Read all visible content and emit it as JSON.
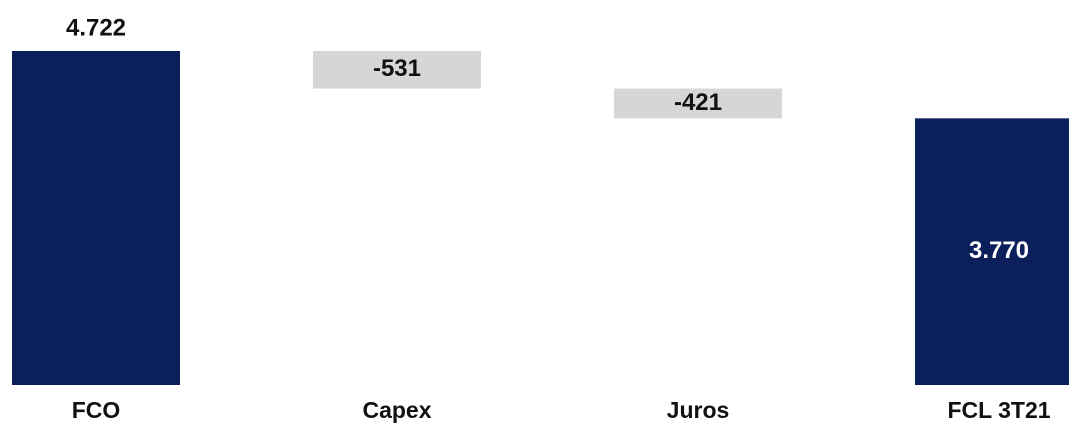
{
  "chart_data": {
    "type": "waterfall",
    "categories": [
      "FCO",
      "Capex",
      "Juros",
      "FCL 3T21"
    ],
    "values": [
      4722,
      -531,
      -421,
      3770
    ],
    "value_labels": [
      "4.722",
      "-531",
      "-421",
      "3.770"
    ],
    "measure": [
      "absolute",
      "relative",
      "relative",
      "total"
    ],
    "colors": [
      "#0b1f5b",
      "#d6d6d6",
      "#d6d6d6",
      "#0b1f5b"
    ]
  }
}
